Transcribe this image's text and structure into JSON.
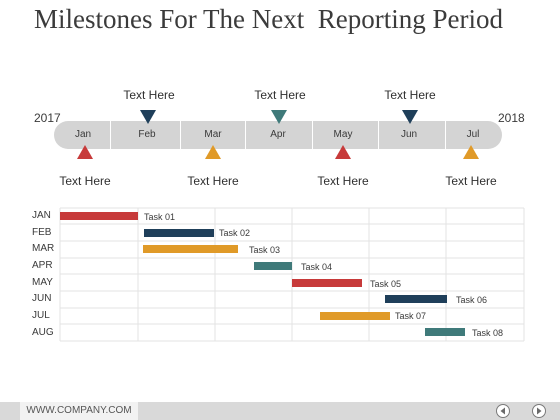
{
  "title": "Milestones For The Next  Reporting Period",
  "timeline": {
    "start_year": "2017",
    "end_year": "2018",
    "months": [
      "Jan",
      "Feb",
      "Mar",
      "Apr",
      "May",
      "Jun",
      "Jul"
    ],
    "top_labels": [
      "Text Here",
      "Text Here",
      "Text Here"
    ],
    "bottom_labels": [
      "Text Here",
      "Text Here",
      "Text Here",
      "Text Here"
    ],
    "colors": {
      "red": "#c73a3a",
      "navy": "#1f3f5a",
      "teal": "#3f7a7a",
      "orange": "#e09a28",
      "track": "#d4d4d4"
    }
  },
  "gantt": {
    "rows": [
      {
        "label": "JAN",
        "task": "Task 01"
      },
      {
        "label": "FEB",
        "task": "Task 02"
      },
      {
        "label": "MAR",
        "task": "Task 03"
      },
      {
        "label": "APR",
        "task": "Task 04"
      },
      {
        "label": "MAY",
        "task": "Task 05"
      },
      {
        "label": "JUN",
        "task": "Task 06"
      },
      {
        "label": "JUL",
        "task": "Task 07"
      },
      {
        "label": "AUG",
        "task": "Task 08"
      }
    ]
  },
  "footer": {
    "url": "WWW.COMPANY.COM",
    "prev_icon": "prev-icon",
    "next_icon": "next-icon"
  }
}
